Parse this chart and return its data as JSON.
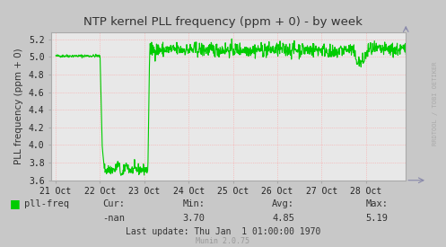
{
  "title": "NTP kernel PLL frequency (ppm + 0) - by week",
  "ylabel": "PLL frequency (ppm + 0)",
  "bg_color": "#c8c8c8",
  "plot_bg_color": "#e8e8e8",
  "line_color": "#00cc00",
  "ylim": [
    3.6,
    5.28
  ],
  "yticks": [
    3.6,
    3.8,
    4.0,
    4.2,
    4.4,
    4.6,
    4.8,
    5.0,
    5.2
  ],
  "xlabels": [
    "21 Oct",
    "22 Oct",
    "23 Oct",
    "24 Oct",
    "25 Oct",
    "26 Oct",
    "27 Oct",
    "28 Oct"
  ],
  "xtick_positions": [
    0,
    1,
    2,
    3,
    4,
    5,
    6,
    7
  ],
  "legend_label": "pll-freq",
  "legend_color": "#00cc00",
  "cur_label": "Cur:",
  "cur_value": "-nan",
  "min_label": "Min:",
  "min_value": "3.70",
  "avg_label": "Avg:",
  "avg_value": "4.85",
  "max_label": "Max:",
  "max_value": "5.19",
  "last_update": "Last update: Thu Jan  1 01:00:00 1970",
  "munin_version": "Munin 2.0.75",
  "watermark": "RRDTOOL / TOBI OETIKER"
}
